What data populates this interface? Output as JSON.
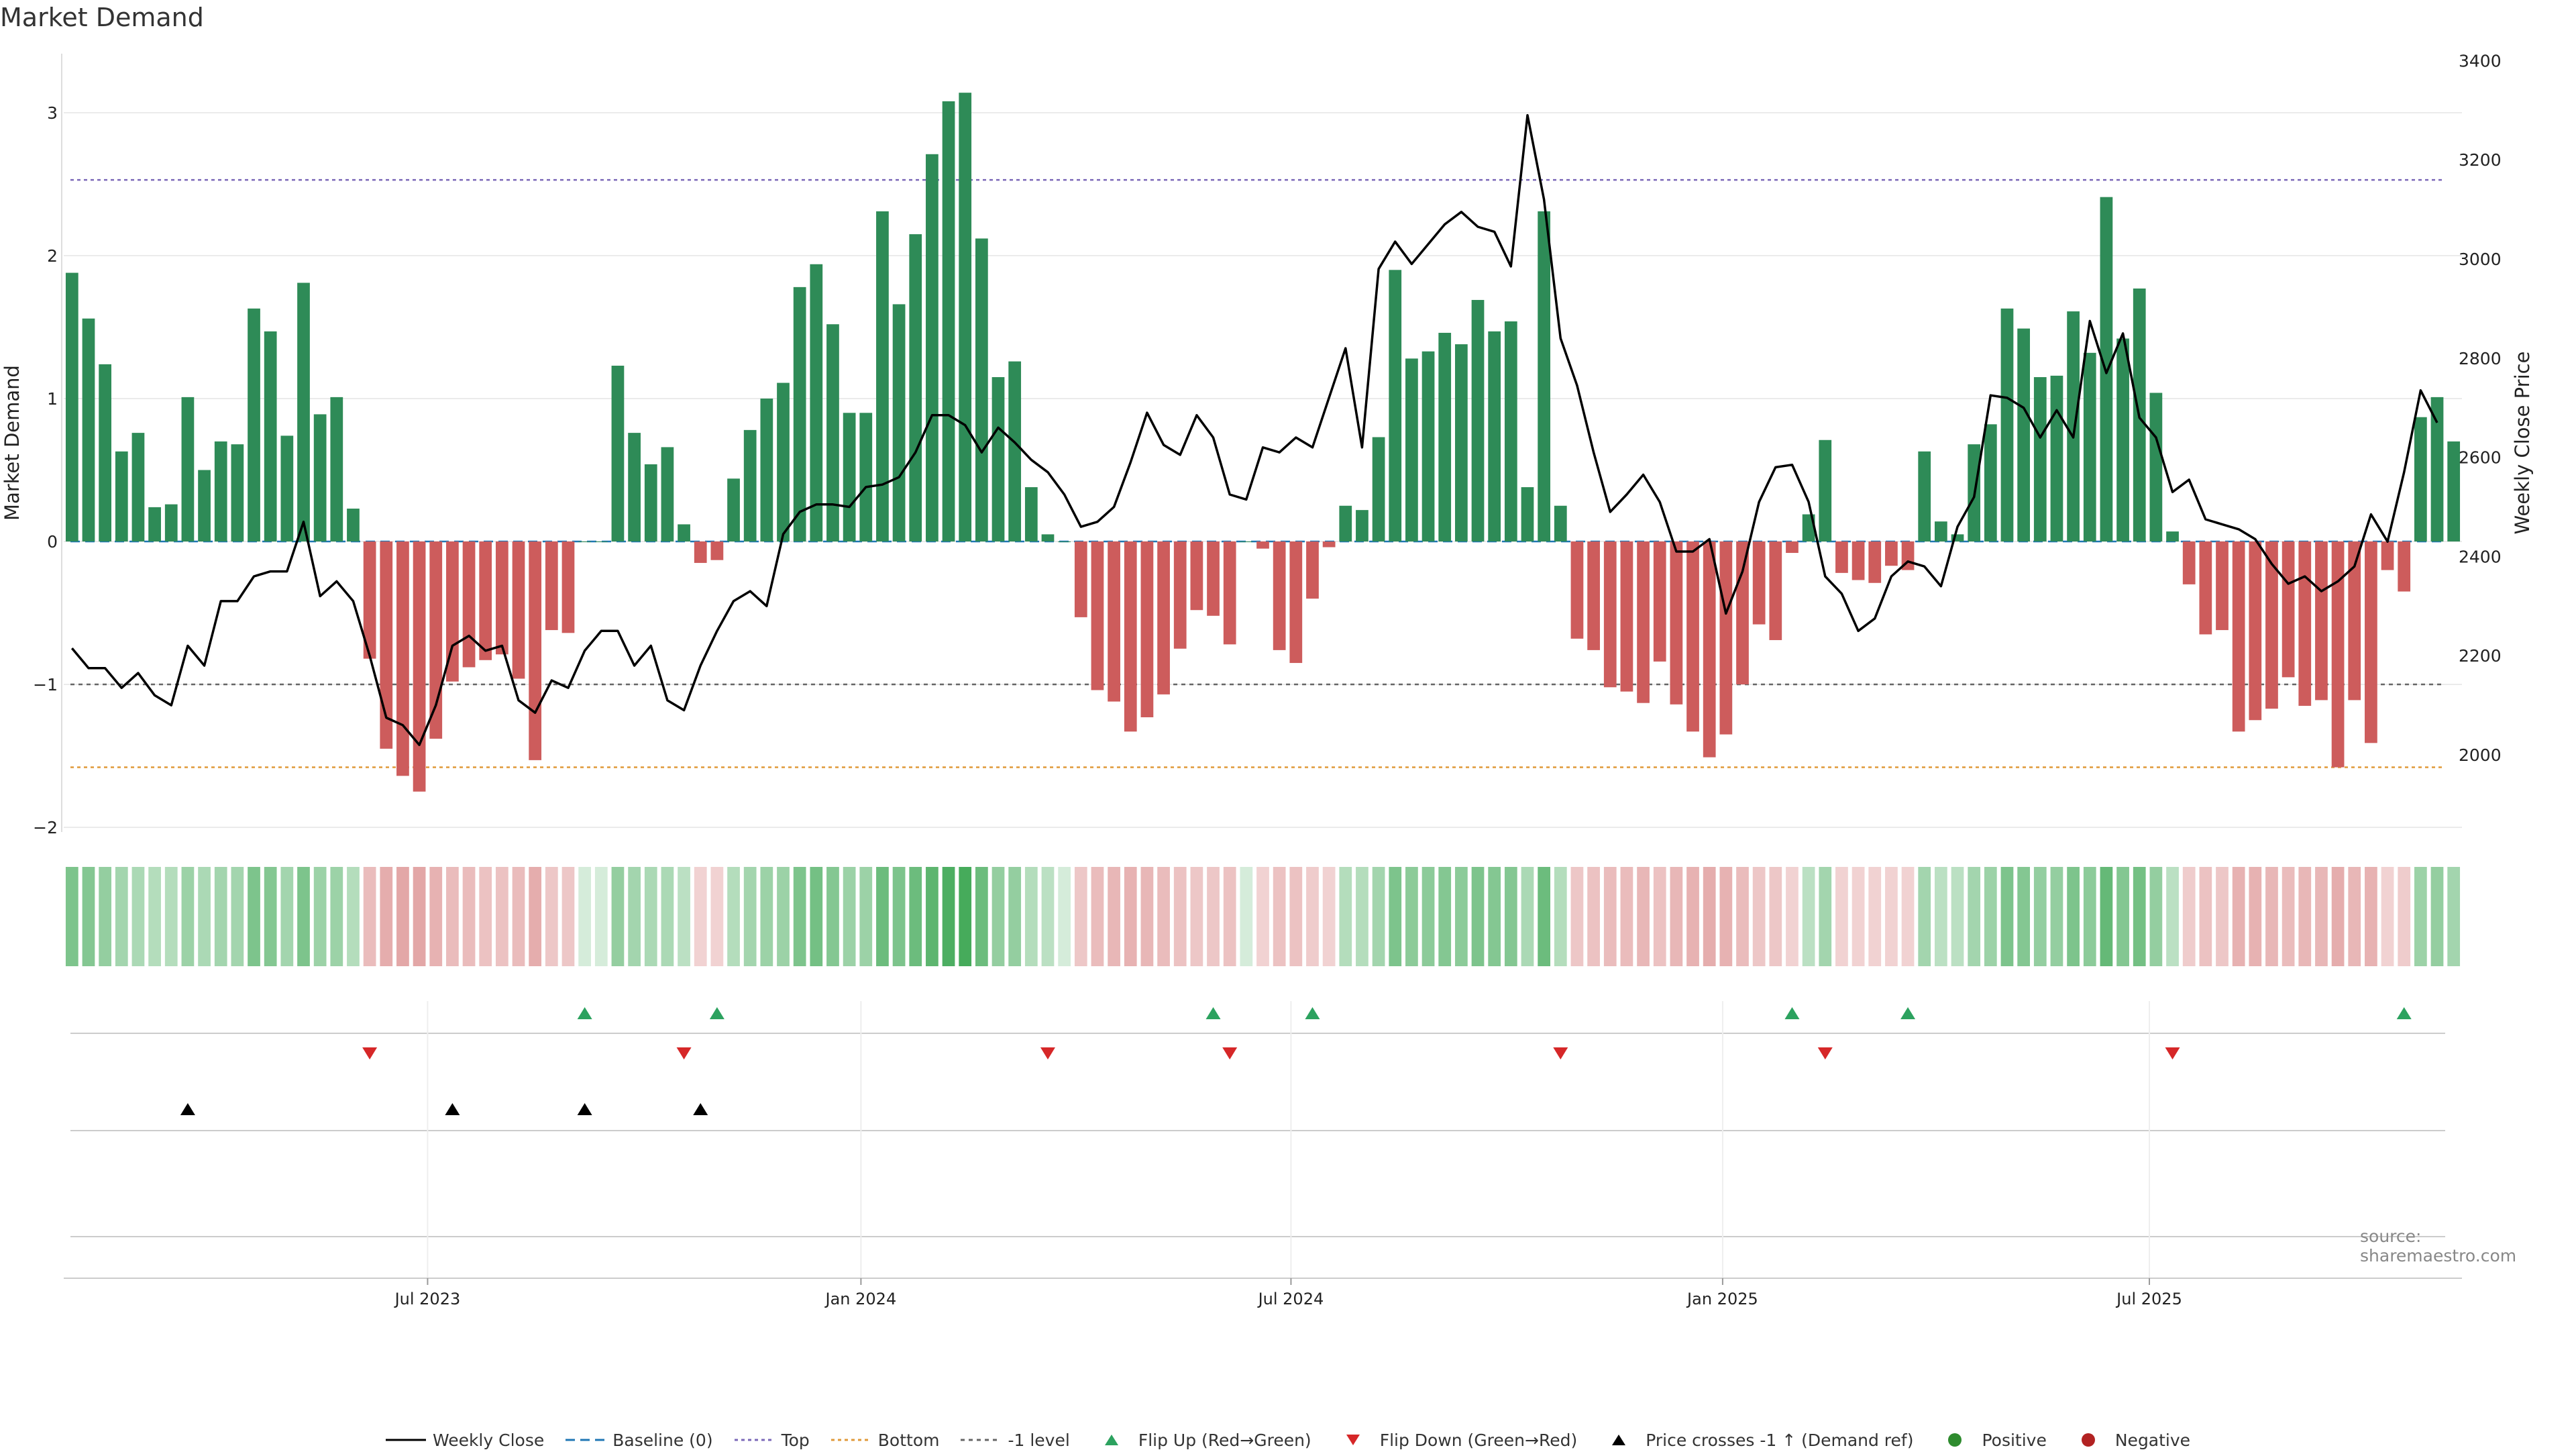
{
  "title": "Market Demand",
  "source": "source: sharemaestro.com",
  "colors": {
    "positive": "#2e8b57",
    "negative": "#cd5c5c",
    "baseline": "#1f77b4",
    "top": "#7b68b8",
    "bottom": "#e09a3a",
    "minus1": "#666666",
    "flip_up": "#2ca25f",
    "flip_down": "#d62728",
    "cross": "#000000"
  },
  "legend": [
    {
      "label": "Weekly Close",
      "symbol": "line-solid-black"
    },
    {
      "label": "Baseline (0)",
      "symbol": "line-dashed-blue"
    },
    {
      "label": "Top",
      "symbol": "line-dotted-purple"
    },
    {
      "label": "Bottom",
      "symbol": "line-dotted-orange"
    },
    {
      "label": "-1 level",
      "symbol": "line-dashed-grey"
    },
    {
      "label": "Flip Up (Red→Green)",
      "symbol": "triangle-up-green"
    },
    {
      "label": "Flip Down (Green→Red)",
      "symbol": "triangle-down-red"
    },
    {
      "label": "Price crosses -1 ↑ (Demand ref)",
      "symbol": "triangle-up-black"
    },
    {
      "label": "Positive",
      "symbol": "circle-green"
    },
    {
      "label": "Negative",
      "symbol": "circle-red"
    }
  ],
  "chart_data": {
    "type": "bar",
    "title": "Market Demand",
    "ylabel": "Market Demand",
    "y2label": "Weekly Close Price",
    "ylim": [
      -2.3,
      3.35
    ],
    "y2lim": [
      1900,
      3400
    ],
    "yticks": [
      "−2",
      "−1",
      "0",
      "1",
      "2",
      "3"
    ],
    "ytick_values": [
      -2,
      -1,
      0,
      1,
      2,
      3
    ],
    "y2ticks": [
      "2000",
      "2200",
      "2400",
      "2600",
      "2800",
      "3000",
      "3200",
      "3400"
    ],
    "y2tick_values": [
      2000,
      2200,
      2400,
      2600,
      2800,
      3000,
      3200,
      3400
    ],
    "xticks": [
      "Jul 2023",
      "Jan 2024",
      "Jul 2024",
      "Jan 2025",
      "Jul 2025"
    ],
    "xtick_index": [
      21.5,
      47.7,
      73.7,
      99.8,
      125.6
    ],
    "reference_lines": {
      "baseline": 0,
      "top": 2.53,
      "bottom": -1.58,
      "minus1": -1
    },
    "demand": [
      1.88,
      1.56,
      1.24,
      0.63,
      0.76,
      0.24,
      0.26,
      1.01,
      0.5,
      0.7,
      0.68,
      1.63,
      1.47,
      0.74,
      1.81,
      0.89,
      1.01,
      0.23,
      -0.82,
      -1.45,
      -1.64,
      -1.75,
      -1.38,
      -0.98,
      -0.88,
      -0.83,
      -0.79,
      -0.96,
      -1.53,
      -0.62,
      -0.64,
      0.0,
      0.0,
      1.23,
      0.76,
      0.54,
      0.66,
      0.12,
      -0.15,
      -0.13,
      0.44,
      0.78,
      1.0,
      1.11,
      1.78,
      1.94,
      1.52,
      0.9,
      0.9,
      2.31,
      1.66,
      2.15,
      2.71,
      3.08,
      3.14,
      2.12,
      1.15,
      1.26,
      0.38,
      0.05,
      0.0,
      -0.53,
      -1.04,
      -1.12,
      -1.33,
      -1.23,
      -1.07,
      -0.75,
      -0.48,
      -0.52,
      -0.72,
      0.0,
      -0.05,
      -0.76,
      -0.85,
      -0.4,
      -0.04,
      0.25,
      0.22,
      0.73,
      1.9,
      1.28,
      1.33,
      1.46,
      1.38,
      1.69,
      1.47,
      1.54,
      0.38,
      2.31,
      0.25,
      -0.68,
      -0.76,
      -1.02,
      -1.05,
      -1.13,
      -0.84,
      -1.14,
      -1.33,
      -1.51,
      -1.35,
      -1.0,
      -0.58,
      -0.69,
      -0.08,
      0.19,
      0.71,
      -0.22,
      -0.27,
      -0.29,
      -0.17,
      -0.2,
      0.63,
      0.14,
      0.05,
      0.68,
      0.82,
      1.63,
      1.49,
      1.15,
      1.16,
      1.61,
      1.32,
      2.41,
      1.42,
      1.77,
      1.04,
      0.07,
      -0.3,
      -0.65,
      -0.62,
      -1.33,
      -1.25,
      -1.17,
      -0.95,
      -1.15,
      -1.11,
      -1.58,
      -1.11,
      -1.41,
      -0.2,
      -0.35,
      0.87,
      1.01,
      0.7
    ],
    "heat_intensity": [
      0.5,
      0.45,
      0.35,
      0.25,
      0.2,
      0.15,
      0.15,
      0.3,
      0.2,
      0.25,
      0.25,
      0.5,
      0.45,
      0.25,
      0.5,
      0.3,
      0.3,
      0.15,
      0.3,
      0.45,
      0.5,
      0.5,
      0.4,
      0.3,
      0.3,
      0.25,
      0.25,
      0.3,
      0.45,
      0.2,
      0.2,
      0.1,
      0.1,
      0.35,
      0.25,
      0.2,
      0.2,
      0.1,
      0.1,
      0.1,
      0.15,
      0.25,
      0.3,
      0.3,
      0.5,
      0.55,
      0.45,
      0.3,
      0.3,
      0.6,
      0.5,
      0.6,
      0.7,
      0.8,
      0.85,
      0.6,
      0.35,
      0.35,
      0.15,
      0.1,
      0.1,
      0.2,
      0.3,
      0.35,
      0.4,
      0.35,
      0.3,
      0.25,
      0.2,
      0.2,
      0.25,
      0.1,
      0.1,
      0.25,
      0.25,
      0.15,
      0.1,
      0.15,
      0.15,
      0.25,
      0.5,
      0.4,
      0.4,
      0.45,
      0.4,
      0.5,
      0.45,
      0.45,
      0.2,
      0.6,
      0.15,
      0.2,
      0.25,
      0.3,
      0.3,
      0.35,
      0.25,
      0.35,
      0.4,
      0.45,
      0.4,
      0.3,
      0.2,
      0.2,
      0.1,
      0.1,
      0.25,
      0.1,
      0.1,
      0.1,
      0.1,
      0.1,
      0.25,
      0.1,
      0.1,
      0.25,
      0.3,
      0.5,
      0.45,
      0.35,
      0.35,
      0.5,
      0.4,
      0.65,
      0.45,
      0.55,
      0.35,
      0.1,
      0.15,
      0.25,
      0.2,
      0.4,
      0.4,
      0.35,
      0.3,
      0.35,
      0.35,
      0.45,
      0.35,
      0.4,
      0.1,
      0.15,
      0.3,
      0.35,
      0.25
    ],
    "price_index": [
      0,
      1,
      2,
      3,
      4,
      5,
      6,
      7,
      8,
      9,
      10,
      11,
      12,
      13,
      14,
      15,
      16,
      17,
      18,
      19,
      20,
      21,
      22,
      23,
      24,
      25,
      26,
      27,
      28,
      29,
      30,
      31,
      32,
      33,
      34,
      35,
      36,
      37,
      38,
      39,
      40,
      41,
      42,
      43,
      44,
      45,
      46,
      47,
      48,
      49,
      50,
      51,
      52,
      53,
      54,
      55,
      56,
      57,
      58,
      59,
      60,
      61,
      62,
      63,
      64,
      65,
      66,
      67,
      68,
      69,
      70,
      71,
      72,
      73,
      74,
      75,
      76,
      77,
      78,
      79,
      80,
      81,
      82,
      83,
      84,
      85,
      86,
      87,
      88,
      89,
      90,
      91,
      92,
      93,
      94,
      95,
      96,
      97,
      98,
      99,
      100,
      101,
      102,
      103,
      104,
      105,
      106,
      107,
      108,
      109,
      110,
      111,
      112,
      113,
      114,
      115,
      116,
      117,
      118,
      119,
      120,
      121,
      122,
      123,
      124,
      125,
      126,
      127,
      128,
      129,
      130,
      131,
      132,
      133,
      134,
      135,
      136,
      137,
      138,
      139,
      140,
      141,
      142,
      143
    ],
    "price": [
      2215,
      2175,
      2175,
      2135,
      2165,
      2120,
      2100,
      2220,
      2180,
      2310,
      2310,
      2360,
      2370,
      2370,
      2470,
      2320,
      2350,
      2310,
      2200,
      2075,
      2060,
      2020,
      2100,
      2220,
      2240,
      2210,
      2220,
      2110,
      2085,
      2150,
      2135,
      2210,
      2250,
      2250,
      2180,
      2220,
      2110,
      2090,
      2180,
      2250,
      2310,
      2330,
      2300,
      2445,
      2490,
      2505,
      2505,
      2500,
      2540,
      2545,
      2560,
      2610,
      2685,
      2685,
      2665,
      2610,
      2660,
      2630,
      2595,
      2570,
      2525,
      2460,
      2470,
      2500,
      2590,
      2690,
      2625,
      2605,
      2685,
      2640,
      2525,
      2515,
      2620,
      2610,
      2640,
      2620,
      2720,
      2820,
      2620,
      2980,
      3035,
      2990,
      3030,
      3070,
      3095,
      3065,
      3055,
      2985,
      3290,
      3120,
      2840,
      2745,
      2610,
      2490,
      2525,
      2565,
      2510,
      2410,
      2410,
      2435,
      2285,
      2370,
      2510,
      2580,
      2585,
      2510,
      2360,
      2325,
      2250,
      2275,
      2360,
      2390,
      2380,
      2340,
      2460,
      2520,
      2725,
      2720,
      2700,
      2640,
      2695,
      2640,
      2875,
      2770,
      2850,
      2680,
      2640,
      2530,
      2555,
      2475,
      2465,
      2455,
      2435,
      2385,
      2345,
      2360,
      2330,
      2350,
      2380,
      2485,
      2430,
      2570,
      2735,
      2670
    ],
    "flip_up_index": [
      31,
      39,
      69,
      75,
      104,
      111,
      141
    ],
    "flip_down_index": [
      18,
      37,
      59,
      70,
      90,
      106,
      127
    ],
    "price_cross_index": [
      7,
      23,
      31,
      38
    ]
  }
}
